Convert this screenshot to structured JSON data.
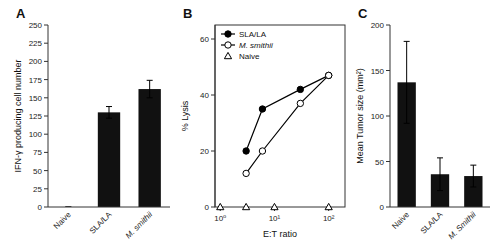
{
  "chart_data": [
    {
      "type": "bar",
      "title": "A",
      "categories": [
        "Naive",
        "SLA/LA",
        "M. smithii"
      ],
      "values": [
        0,
        130,
        162
      ],
      "errors": [
        0,
        8,
        12
      ],
      "y_label": "IFN-γ producing cell number",
      "ylim": [
        0,
        250
      ],
      "yticks": [
        0,
        25,
        50,
        75,
        100,
        125,
        150,
        175,
        200,
        225,
        250
      ],
      "color": "#111111"
    },
    {
      "type": "line",
      "title": "B",
      "x_label": "E:T ratio",
      "y_label": "% Lysis",
      "log": "x",
      "xlim": [
        0.8,
        200
      ],
      "xticks": [
        {
          "value": 1,
          "label": "10⁰"
        },
        {
          "value": 10,
          "label": "10¹"
        },
        {
          "value": 100,
          "label": "10²"
        }
      ],
      "ylim": [
        0,
        65
      ],
      "yticks": [
        0,
        20,
        40,
        60
      ],
      "legend": "upper left",
      "series": [
        {
          "name": "SLA/LA",
          "x": [
            3,
            6,
            30,
            100
          ],
          "values": [
            20,
            35,
            42,
            47
          ],
          "color": "#000000",
          "marker": "circle",
          "line_style": "solid"
        },
        {
          "name": "M. smithii",
          "x": [
            3,
            6,
            30,
            100
          ],
          "values": [
            12,
            20,
            37,
            47
          ],
          "color": "#000000",
          "marker": "circle-open",
          "line_style": "solid"
        },
        {
          "name": "Naive",
          "x": [
            1,
            3,
            10,
            100
          ],
          "values": [
            0,
            0,
            0,
            0
          ],
          "color": "#000000",
          "marker": "triangle-open",
          "line_style": "none"
        }
      ]
    },
    {
      "type": "bar",
      "title": "C",
      "categories": [
        "Naive",
        "SLA/LA",
        "M. Smithii"
      ],
      "values": [
        137,
        36,
        34
      ],
      "errors": [
        45,
        18,
        12
      ],
      "y_label": "Mean Tumor size (mm²)",
      "ylim": [
        0,
        200
      ],
      "yticks": [
        0,
        50,
        100,
        150,
        200
      ],
      "color": "#111111"
    }
  ]
}
